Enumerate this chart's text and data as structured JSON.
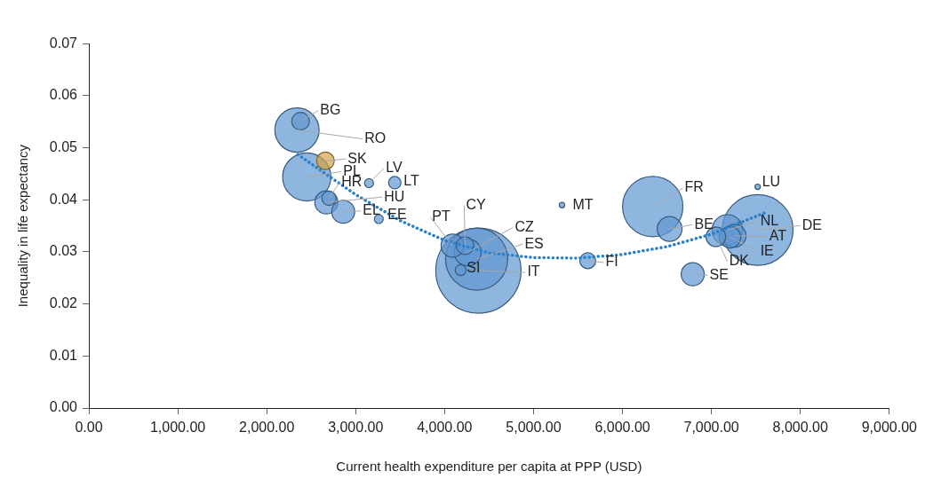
{
  "chart_data": {
    "type": "bubble",
    "xlabel": "Current health expenditure per capita at PPP (USD)",
    "ylabel": "Inequality in life expectancy",
    "xlim": [
      0,
      9000
    ],
    "xticks": [
      {
        "value": 0,
        "label": "0.00"
      },
      {
        "value": 1000,
        "label": "1,000.00"
      },
      {
        "value": 2000,
        "label": "2,000.00"
      },
      {
        "value": 3000,
        "label": "3,000.00"
      },
      {
        "value": 4000,
        "label": "4,000.00"
      },
      {
        "value": 5000,
        "label": "5,000.00"
      },
      {
        "value": 6000,
        "label": "6,000.00"
      },
      {
        "value": 7000,
        "label": "7,000.00"
      },
      {
        "value": 8000,
        "label": "8,000.00"
      },
      {
        "value": 9000,
        "label": "9,000.00"
      }
    ],
    "ylim": [
      0,
      0.07
    ],
    "yticks": [
      {
        "value": 0,
        "label": "0.00"
      },
      {
        "value": 0.01,
        "label": "0.01"
      },
      {
        "value": 0.02,
        "label": "0.02"
      },
      {
        "value": 0.03,
        "label": "0.03"
      },
      {
        "value": 0.04,
        "label": "0.04"
      },
      {
        "value": 0.05,
        "label": "0.05"
      },
      {
        "value": 0.06,
        "label": "0.06"
      },
      {
        "value": 0.07,
        "label": "0.07"
      }
    ],
    "grid": false,
    "legend": false,
    "series": [
      {
        "x": [
          4380,
          7520,
          4360,
          6340,
          2450,
          2340,
          7180,
          4260,
          6530,
          4090,
          2670,
          2860,
          6790,
          7260,
          7210,
          7050,
          2380,
          2660,
          4230,
          5610,
          2700,
          3440,
          4180,
          3150,
          3260,
          5320,
          7520
        ],
        "values": [
          0.0264,
          0.0342,
          0.0286,
          0.0387,
          0.0444,
          0.0534,
          0.0342,
          0.0299,
          0.0344,
          0.0312,
          0.0395,
          0.0377,
          0.0257,
          0.0331,
          0.0328,
          0.0329,
          0.0551,
          0.0475,
          0.0312,
          0.0283,
          0.0403,
          0.0433,
          0.0265,
          0.0432,
          0.0363,
          0.039,
          0.0425
        ],
        "sizes": [
          1,
          0.69,
          0.53,
          0.5,
          0.32,
          0.27,
          0.13,
          0.1,
          0.085,
          0.073,
          0.073,
          0.073,
          0.073,
          0.073,
          0.063,
          0.053,
          0.043,
          0.043,
          0.043,
          0.035,
          0.028,
          0.021,
          0.016,
          0.011,
          0.011,
          0.004,
          0.004
        ],
        "colors": [
          "#5f97d2",
          "#5f97d2",
          "#5f97d2",
          "#5f97d2",
          "#5f97d2",
          "#5f97d2",
          "#5f97d2",
          "#5f97d2",
          "#5f97d2",
          "#5f97d2",
          "#5f97d2",
          "#5f97d2",
          "#5f97d2",
          "#5f97d2",
          "#5f97d2",
          "#5f97d2",
          "#5f97d2",
          "#d4a447",
          "#5f97d2",
          "#5f97d2",
          "#5f97d2",
          "#5f97d2",
          "#5f97d2",
          "#5f97d2",
          "#5f97d2",
          "#5f97d2",
          "#5f97d2"
        ]
      },
      {
        "type": "line",
        "color": "#2a7fc9",
        "line_style": "dotted",
        "marker": "none",
        "x": [
          2350,
          3000,
          3500,
          4000,
          4500,
          5000,
          5500,
          6000,
          6500,
          7000,
          7600
        ],
        "values": [
          0.0487,
          0.041,
          0.036,
          0.0322,
          0.0298,
          0.0289,
          0.0288,
          0.0295,
          0.031,
          0.0334,
          0.0375
        ]
      }
    ],
    "annotations": [
      {
        "text": "RO",
        "x": 2340,
        "y": 0.0534
      },
      {
        "text": "BG",
        "x": 2380,
        "y": 0.0551
      },
      {
        "text": "SK",
        "x": 2660,
        "y": 0.0475
      },
      {
        "text": "PL",
        "x": 2450,
        "y": 0.0444
      },
      {
        "text": "HR",
        "x": 2700,
        "y": 0.0403
      },
      {
        "text": "HU",
        "x": 2670,
        "y": 0.0395
      },
      {
        "text": "EL",
        "x": 2860,
        "y": 0.0377
      },
      {
        "text": "LV",
        "x": 3150,
        "y": 0.0432
      },
      {
        "text": "LT",
        "x": 3440,
        "y": 0.0433
      },
      {
        "text": "EE",
        "x": 3260,
        "y": 0.0363
      },
      {
        "text": "PT",
        "x": 4090,
        "y": 0.0312
      },
      {
        "text": "CY",
        "x": 4230,
        "y": 0.0312
      },
      {
        "text": "CZ",
        "x": 4260,
        "y": 0.0299
      },
      {
        "text": "ES",
        "x": 4360,
        "y": 0.0286
      },
      {
        "text": "IT",
        "x": 4380,
        "y": 0.0264
      },
      {
        "text": "SI",
        "x": 4180,
        "y": 0.0265
      },
      {
        "text": "MT",
        "x": 5320,
        "y": 0.039
      },
      {
        "text": "FI",
        "x": 5610,
        "y": 0.0283
      },
      {
        "text": "FR",
        "x": 6340,
        "y": 0.0387
      },
      {
        "text": "BE",
        "x": 6530,
        "y": 0.0344
      },
      {
        "text": "SE",
        "x": 6790,
        "y": 0.0257
      },
      {
        "text": "LU",
        "x": 7520,
        "y": 0.0425
      },
      {
        "text": "DE",
        "x": 7520,
        "y": 0.0342
      },
      {
        "text": "NL",
        "x": 7180,
        "y": 0.0342
      },
      {
        "text": "AT",
        "x": 7260,
        "y": 0.0331
      },
      {
        "text": "IE",
        "x": 7210,
        "y": 0.0328
      },
      {
        "text": "DK",
        "x": 7050,
        "y": 0.0329
      }
    ]
  }
}
